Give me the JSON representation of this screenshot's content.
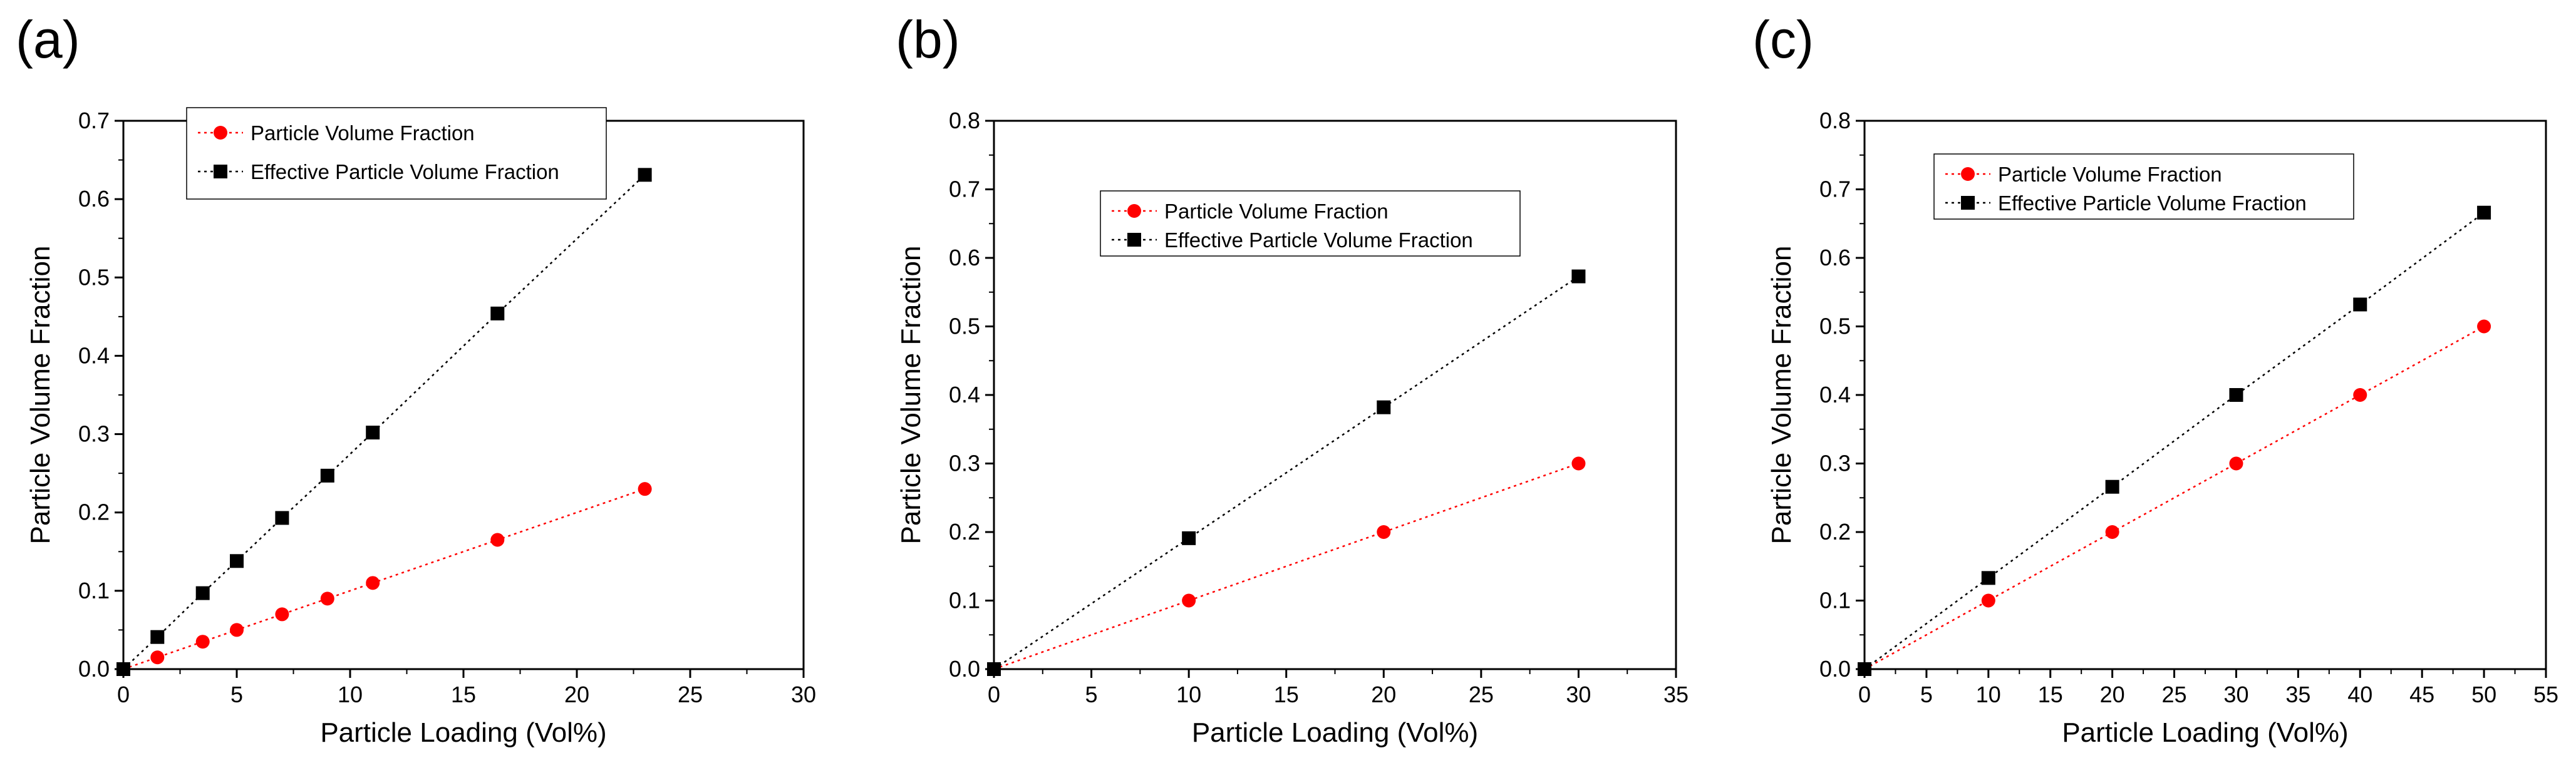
{
  "chart_data": [
    {
      "panel_label": "(a)",
      "type": "line",
      "xlabel": "Particle Loading (Vol%)",
      "ylabel": "Particle Volume Fraction",
      "xlim": [
        0,
        30
      ],
      "ylim": [
        0,
        0.7
      ],
      "xticks": [
        0,
        5,
        10,
        15,
        20,
        25,
        30
      ],
      "yticks": [
        0.0,
        0.1,
        0.2,
        0.3,
        0.4,
        0.5,
        0.6,
        0.7
      ],
      "grid": false,
      "legend_position": "top-left",
      "series": [
        {
          "name": "Particle Volume Fraction",
          "color": "#ff0000",
          "marker": "circle",
          "line": "dotted",
          "x": [
            0,
            1.5,
            3.5,
            5,
            7,
            9,
            11,
            16.5,
            23
          ],
          "y": [
            0,
            0.015,
            0.035,
            0.05,
            0.07,
            0.09,
            0.11,
            0.165,
            0.23
          ]
        },
        {
          "name": "Effective Particle Volume Fraction",
          "color": "#000000",
          "marker": "square",
          "line": "dotted",
          "x": [
            0,
            1.5,
            3.5,
            5,
            7,
            9,
            11,
            16.5,
            23
          ],
          "y": [
            0,
            0.041,
            0.097,
            0.138,
            0.193,
            0.247,
            0.302,
            0.454,
            0.631
          ]
        }
      ]
    },
    {
      "panel_label": "(b)",
      "type": "line",
      "xlabel": "Particle Loading (Vol%)",
      "ylabel": "Particle Volume Fraction",
      "xlim": [
        0,
        35
      ],
      "ylim": [
        0,
        0.8
      ],
      "xticks": [
        0,
        5,
        10,
        15,
        20,
        25,
        30,
        35
      ],
      "yticks": [
        0.0,
        0.1,
        0.2,
        0.3,
        0.4,
        0.5,
        0.6,
        0.7,
        0.8
      ],
      "grid": false,
      "legend_position": "top-center",
      "series": [
        {
          "name": "Particle Volume Fraction",
          "color": "#ff0000",
          "marker": "circle",
          "line": "dotted",
          "x": [
            0,
            10,
            20,
            30
          ],
          "y": [
            0,
            0.1,
            0.2,
            0.3
          ]
        },
        {
          "name": "Effective Particle Volume Fraction",
          "color": "#000000",
          "marker": "square",
          "line": "dotted",
          "x": [
            0,
            10,
            20,
            30
          ],
          "y": [
            0,
            0.191,
            0.382,
            0.573
          ]
        }
      ]
    },
    {
      "panel_label": "(c)",
      "type": "line",
      "xlabel": "Particle Loading (Vol%)",
      "ylabel": "Particle Volume Fraction",
      "xlim": [
        0,
        55
      ],
      "ylim": [
        0,
        0.8
      ],
      "xticks": [
        0,
        5,
        10,
        15,
        20,
        25,
        30,
        35,
        40,
        45,
        50,
        55
      ],
      "yticks": [
        0.0,
        0.1,
        0.2,
        0.3,
        0.4,
        0.5,
        0.6,
        0.7,
        0.8
      ],
      "grid": false,
      "legend_position": "top-left",
      "series": [
        {
          "name": "Particle Volume Fraction",
          "color": "#ff0000",
          "marker": "circle",
          "line": "dotted",
          "x": [
            0,
            10,
            20,
            30,
            40,
            50
          ],
          "y": [
            0,
            0.1,
            0.2,
            0.3,
            0.4,
            0.5
          ]
        },
        {
          "name": "Effective Particle Volume Fraction",
          "color": "#000000",
          "marker": "square",
          "line": "dotted",
          "x": [
            0,
            10,
            20,
            30,
            40,
            50
          ],
          "y": [
            0,
            0.133,
            0.266,
            0.4,
            0.532,
            0.666
          ]
        }
      ]
    }
  ]
}
